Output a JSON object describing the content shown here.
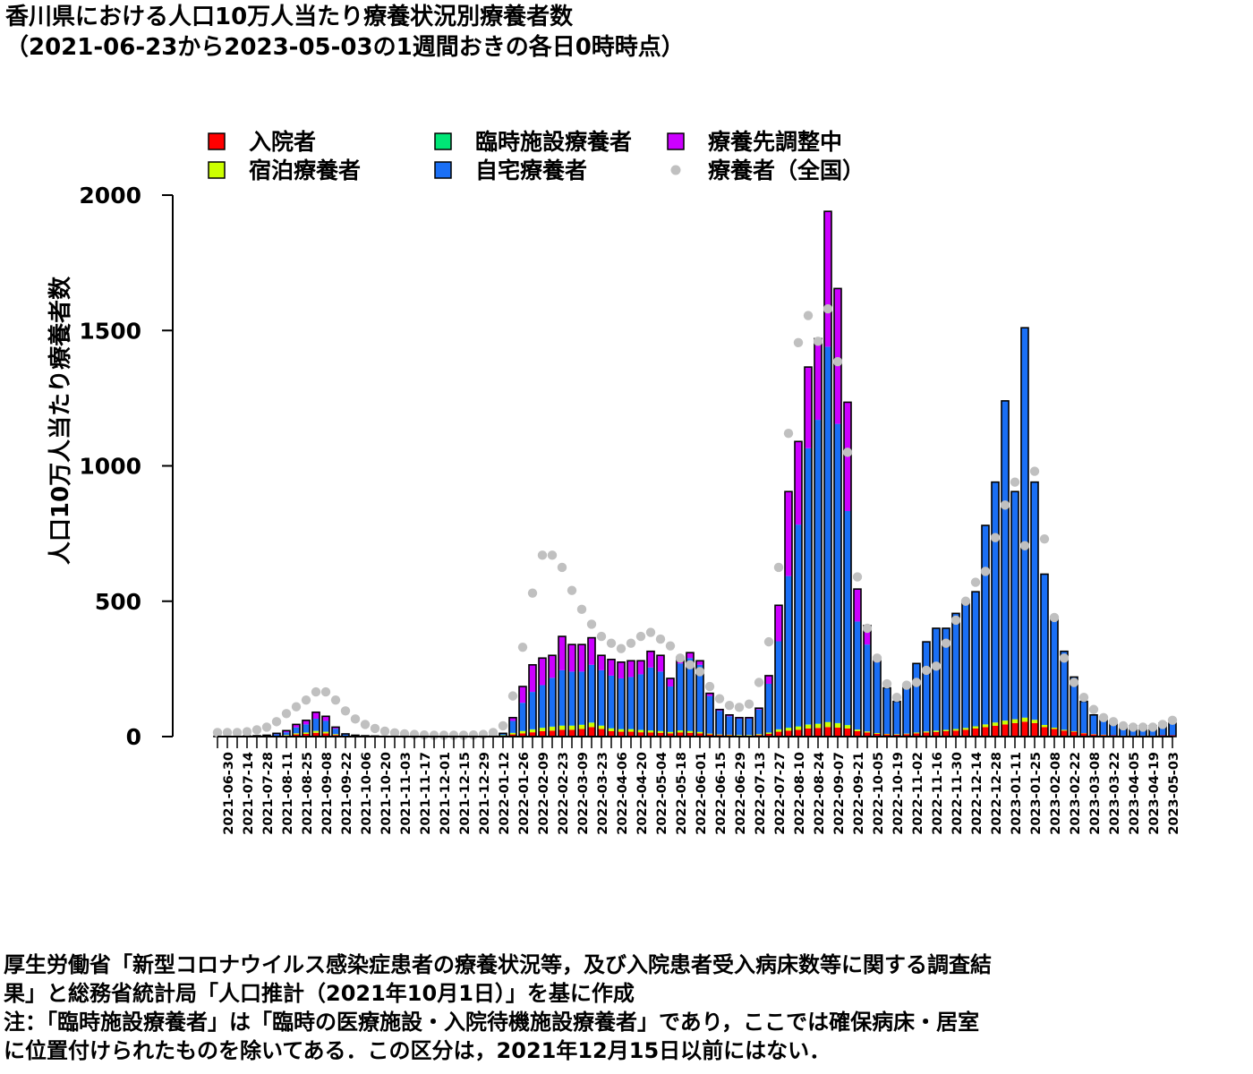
{
  "title_line1": "香川県における人口10万人当たり療養状況別療養者数",
  "title_line2": "（2021-06-23から2023-05-03の1週間おきの各日0時時点）",
  "notes": [
    "厚生労働省「新型コロナウイルス感染症患者の療養状況等，及び入院患者受入病床数等に関する調査結",
    "果」と総務省統計局「人口推計（2021年10月1日）」を基に作成",
    "注：「臨時施設療養者」は「臨時の医療施設・入院待機施設療養者」であり，ここでは確保病床・居室",
    "に位置付けられたものを除いてある．この区分は，2021年12月15日以前にはない．"
  ],
  "colors": {
    "hospital": "#ff0000",
    "hotel": "#ccff00",
    "temporary": "#00e676",
    "home": "#1a6ff5",
    "adjusting": "#cc00ff",
    "national": "#c0c0c0"
  },
  "chart_data": {
    "type": "bar",
    "stacked": true,
    "ylabel": "人口10万人当たり療養者数",
    "ylim": [
      0,
      2000
    ],
    "yticks": [
      0,
      500,
      1000,
      1500,
      2000
    ],
    "legend": [
      {
        "key": "hospital",
        "label": "入院者",
        "shape": "square"
      },
      {
        "key": "temporary",
        "label": "臨時施設療養者",
        "shape": "square"
      },
      {
        "key": "adjusting",
        "label": "療養先調整中",
        "shape": "square"
      },
      {
        "key": "hotel",
        "label": "宿泊療養者",
        "shape": "square"
      },
      {
        "key": "home",
        "label": "自宅療養者",
        "shape": "square"
      },
      {
        "key": "national",
        "label": "療養者（全国）",
        "shape": "circle"
      }
    ],
    "x_tick_labels": [
      "2021-06-30",
      "2021-07-14",
      "2021-07-28",
      "2021-08-11",
      "2021-08-25",
      "2021-09-08",
      "2021-09-22",
      "2021-10-06",
      "2021-10-20",
      "2021-11-03",
      "2021-11-17",
      "2021-12-01",
      "2021-12-15",
      "2021-12-29",
      "2022-01-12",
      "2022-01-26",
      "2022-02-09",
      "2022-02-23",
      "2022-03-09",
      "2022-03-23",
      "2022-04-06",
      "2022-04-20",
      "2022-05-04",
      "2022-05-18",
      "2022-06-01",
      "2022-06-15",
      "2022-06-29",
      "2022-07-13",
      "2022-07-27",
      "2022-08-10",
      "2022-08-24",
      "2022-09-07",
      "2022-09-21",
      "2022-10-05",
      "2022-10-19",
      "2022-11-02",
      "2022-11-16",
      "2022-11-30",
      "2022-12-14",
      "2022-12-28",
      "2023-01-11",
      "2023-01-25",
      "2023-02-08",
      "2023-02-22",
      "2023-03-08",
      "2023-03-22",
      "2023-04-05",
      "2023-04-19",
      "2023-05-03"
    ],
    "dates": [
      "2021-06-23",
      "2021-06-30",
      "2021-07-07",
      "2021-07-14",
      "2021-07-21",
      "2021-07-28",
      "2021-08-04",
      "2021-08-11",
      "2021-08-18",
      "2021-08-25",
      "2021-09-01",
      "2021-09-08",
      "2021-09-15",
      "2021-09-22",
      "2021-09-29",
      "2021-10-06",
      "2021-10-13",
      "2021-10-20",
      "2021-10-27",
      "2021-11-03",
      "2021-11-10",
      "2021-11-17",
      "2021-11-24",
      "2021-12-01",
      "2021-12-08",
      "2021-12-15",
      "2021-12-22",
      "2021-12-29",
      "2022-01-05",
      "2022-01-12",
      "2022-01-19",
      "2022-01-26",
      "2022-02-02",
      "2022-02-09",
      "2022-02-16",
      "2022-02-23",
      "2022-03-02",
      "2022-03-09",
      "2022-03-16",
      "2022-03-23",
      "2022-03-30",
      "2022-04-06",
      "2022-04-13",
      "2022-04-20",
      "2022-04-27",
      "2022-05-04",
      "2022-05-11",
      "2022-05-18",
      "2022-05-25",
      "2022-06-01",
      "2022-06-08",
      "2022-06-15",
      "2022-06-22",
      "2022-06-29",
      "2022-07-06",
      "2022-07-13",
      "2022-07-20",
      "2022-07-27",
      "2022-08-03",
      "2022-08-10",
      "2022-08-17",
      "2022-08-24",
      "2022-08-31",
      "2022-09-07",
      "2022-09-14",
      "2022-09-21",
      "2022-09-28",
      "2022-10-05",
      "2022-10-12",
      "2022-10-19",
      "2022-10-26",
      "2022-11-02",
      "2022-11-09",
      "2022-11-16",
      "2022-11-23",
      "2022-11-30",
      "2022-12-07",
      "2022-12-14",
      "2022-12-21",
      "2022-12-28",
      "2023-01-04",
      "2023-01-11",
      "2023-01-18",
      "2023-01-25",
      "2023-02-01",
      "2023-02-08",
      "2023-02-15",
      "2023-02-22",
      "2023-03-01",
      "2023-03-08",
      "2023-03-15",
      "2023-03-22",
      "2023-03-29",
      "2023-04-05",
      "2023-04-12",
      "2023-04-19",
      "2023-04-26",
      "2023-05-03"
    ],
    "totals": [
      1,
      1,
      1,
      2,
      3,
      5,
      12,
      22,
      45,
      60,
      90,
      75,
      35,
      10,
      5,
      3,
      2,
      1,
      1,
      1,
      1,
      1,
      1,
      1,
      1,
      1,
      1,
      1,
      2,
      12,
      70,
      185,
      265,
      290,
      300,
      370,
      340,
      340,
      365,
      300,
      285,
      275,
      280,
      280,
      315,
      300,
      215,
      290,
      310,
      280,
      160,
      100,
      80,
      70,
      70,
      105,
      225,
      485,
      905,
      1090,
      1365,
      1470,
      1940,
      1655,
      1235,
      545,
      410,
      280,
      180,
      130,
      190,
      270,
      350,
      400,
      400,
      455,
      500,
      535,
      780,
      940,
      1240,
      905,
      1510,
      940,
      600,
      440,
      315,
      220,
      130,
      80,
      60,
      50,
      40,
      40,
      40,
      40,
      50,
      50
    ],
    "series": [
      {
        "name": "入院者",
        "key": "hospital",
        "values": [
          0,
          0,
          0,
          0,
          1,
          1,
          2,
          4,
          8,
          10,
          14,
          12,
          6,
          2,
          1,
          1,
          0,
          0,
          0,
          0,
          0,
          0,
          0,
          0,
          0,
          0,
          0,
          0,
          1,
          3,
          8,
          12,
          16,
          20,
          22,
          25,
          25,
          28,
          35,
          28,
          20,
          18,
          18,
          16,
          15,
          14,
          12,
          15,
          14,
          12,
          8,
          6,
          5,
          4,
          4,
          6,
          10,
          18,
          22,
          25,
          30,
          32,
          35,
          33,
          30,
          20,
          15,
          10,
          8,
          7,
          9,
          12,
          15,
          17,
          20,
          22,
          25,
          30,
          35,
          40,
          45,
          50,
          55,
          50,
          35,
          28,
          22,
          18,
          12,
          8,
          6,
          5,
          4,
          4,
          4,
          4,
          5,
          5
        ]
      },
      {
        "name": "宿泊療養者",
        "key": "hotel",
        "values": [
          0,
          0,
          0,
          0,
          0,
          1,
          1,
          2,
          4,
          5,
          7,
          6,
          3,
          1,
          0,
          0,
          0,
          0,
          0,
          0,
          0,
          0,
          0,
          0,
          0,
          0,
          0,
          0,
          0,
          2,
          5,
          8,
          10,
          12,
          14,
          15,
          15,
          15,
          16,
          12,
          10,
          9,
          9,
          8,
          7,
          6,
          5,
          7,
          6,
          5,
          3,
          2,
          2,
          2,
          2,
          3,
          5,
          8,
          10,
          12,
          14,
          15,
          18,
          16,
          12,
          6,
          4,
          3,
          2,
          2,
          2,
          3,
          4,
          5,
          5,
          6,
          7,
          8,
          10,
          12,
          14,
          14,
          15,
          12,
          8,
          5,
          3,
          2,
          1,
          1,
          1,
          0,
          0,
          0,
          0,
          0,
          0,
          0
        ]
      },
      {
        "name": "臨時施設療養者",
        "key": "temporary",
        "values": [
          0,
          0,
          0,
          0,
          0,
          0,
          0,
          0,
          0,
          0,
          0,
          0,
          0,
          0,
          0,
          0,
          0,
          0,
          0,
          0,
          0,
          0,
          0,
          0,
          0,
          0,
          0,
          0,
          0,
          0,
          1,
          1,
          1,
          1,
          1,
          1,
          1,
          1,
          1,
          1,
          1,
          1,
          1,
          1,
          1,
          1,
          1,
          1,
          1,
          1,
          0,
          0,
          0,
          0,
          0,
          0,
          0,
          1,
          1,
          1,
          1,
          1,
          1,
          1,
          1,
          0,
          0,
          0,
          0,
          0,
          0,
          0,
          0,
          0,
          0,
          0,
          0,
          0,
          0,
          0,
          0,
          0,
          0,
          0,
          0,
          0,
          0,
          0,
          0,
          0,
          0,
          0,
          0,
          0,
          0,
          0,
          0,
          0
        ]
      },
      {
        "name": "自宅療養者",
        "key": "home",
        "values": [
          1,
          1,
          1,
          2,
          2,
          2,
          6,
          10,
          22,
          30,
          45,
          40,
          20,
          5,
          3,
          2,
          2,
          1,
          1,
          1,
          1,
          1,
          1,
          1,
          1,
          1,
          1,
          1,
          1,
          6,
          44,
          104,
          138,
          157,
          180,
          204,
          199,
          196,
          213,
          204,
          194,
          187,
          192,
          205,
          232,
          219,
          167,
          247,
          269,
          247,
          139,
          87,
          68,
          60,
          60,
          91,
          180,
          325,
          560,
          745,
          1020,
          1122,
          1386,
          1105,
          790,
          399,
          321,
          262,
          170,
          121,
          179,
          255,
          331,
          378,
          375,
          427,
          468,
          497,
          735,
          888,
          1181,
          841,
          1440,
          878,
          557,
          407,
          290,
          200,
          117,
          71,
          53,
          45,
          36,
          36,
          36,
          36,
          45,
          45
        ]
      },
      {
        "name": "療養先調整中",
        "key": "adjusting",
        "values": [
          0,
          0,
          0,
          0,
          0,
          1,
          3,
          6,
          11,
          15,
          24,
          17,
          6,
          2,
          1,
          0,
          0,
          0,
          0,
          0,
          0,
          0,
          0,
          0,
          0,
          0,
          0,
          0,
          0,
          1,
          12,
          60,
          100,
          100,
          83,
          125,
          100,
          100,
          100,
          55,
          60,
          60,
          60,
          50,
          60,
          60,
          30,
          20,
          20,
          15,
          10,
          5,
          5,
          4,
          4,
          5,
          30,
          133,
          312,
          307,
          300,
          300,
          500,
          500,
          402,
          120,
          70,
          5,
          0,
          0,
          0,
          0,
          0,
          0,
          0,
          0,
          0,
          0,
          0,
          0,
          0,
          0,
          0,
          0,
          0,
          0,
          0,
          0,
          0,
          0,
          0,
          0,
          0,
          0,
          0,
          0,
          0,
          0
        ]
      }
    ],
    "national": [
      15,
      15,
      15,
      18,
      25,
      35,
      55,
      85,
      110,
      135,
      165,
      165,
      135,
      95,
      65,
      45,
      30,
      20,
      14,
      10,
      8,
      6,
      5,
      5,
      5,
      5,
      6,
      8,
      15,
      40,
      150,
      330,
      530,
      670,
      670,
      625,
      540,
      470,
      415,
      370,
      345,
      325,
      345,
      370,
      385,
      360,
      335,
      290,
      265,
      240,
      185,
      140,
      115,
      108,
      120,
      200,
      350,
      625,
      1120,
      1455,
      1555,
      1460,
      1580,
      1385,
      1050,
      590,
      400,
      290,
      195,
      145,
      190,
      200,
      245,
      260,
      345,
      430,
      500,
      570,
      610,
      735,
      855,
      940,
      705,
      980,
      730,
      440,
      290,
      200,
      145,
      100,
      70,
      55,
      40,
      35,
      35,
      35,
      45,
      60
    ]
  }
}
